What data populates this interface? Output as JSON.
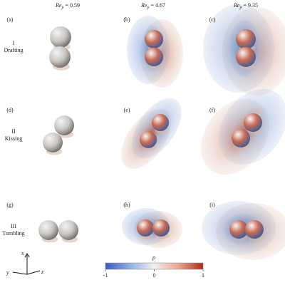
{
  "columns": [
    {
      "symbol": "Re",
      "subscript": "p",
      "rest": "= 0.59"
    },
    {
      "symbol": "Re",
      "subscript": "p",
      "rest": "= 4.67"
    },
    {
      "symbol": "Re",
      "subscript": "p",
      "rest": "= 9.35"
    }
  ],
  "rows": [
    {
      "numeral": "I",
      "name": "Drafting"
    },
    {
      "numeral": "II",
      "name": "Kissing"
    },
    {
      "numeral": "III",
      "name": "Tumbling"
    }
  ],
  "panels": [
    "(a)",
    "(b)",
    "(c)",
    "(d)",
    "(e)",
    "(f)",
    "(g)",
    "(h)",
    "(i)"
  ],
  "colorbar": {
    "label": "p",
    "ticks": [
      -1,
      0,
      1
    ]
  },
  "axes": {
    "x": "x",
    "y": "y",
    "z": "z"
  }
}
